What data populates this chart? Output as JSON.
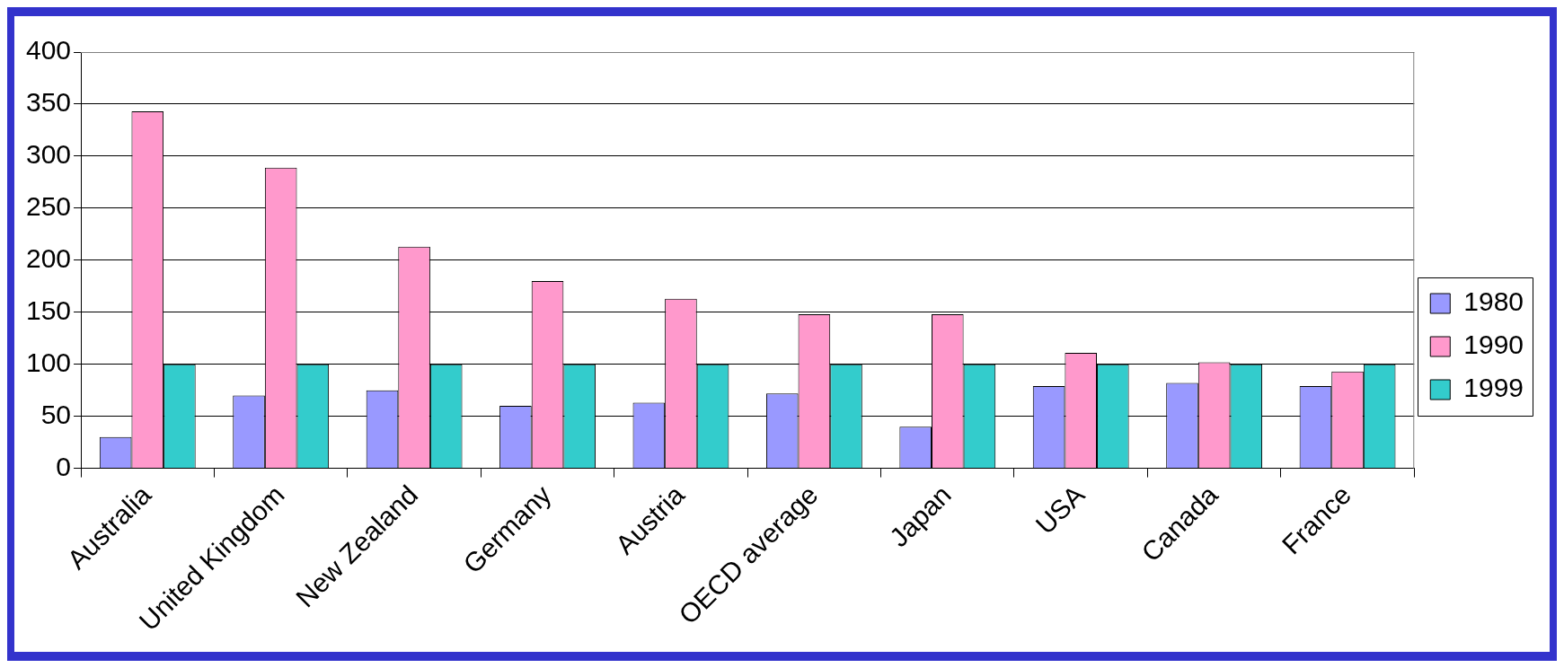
{
  "chart_data": {
    "type": "bar",
    "categories": [
      "Australia",
      "United Kingdom",
      "New Zealand",
      "Germany",
      "Austria",
      "OECD average",
      "Japan",
      "USA",
      "Canada",
      "France"
    ],
    "series": [
      {
        "name": "1980",
        "color": "#9999ff",
        "values": [
          30,
          70,
          75,
          60,
          63,
          72,
          40,
          79,
          82,
          79
        ]
      },
      {
        "name": "1990",
        "color": "#ff99cc",
        "values": [
          343,
          289,
          213,
          180,
          163,
          148,
          148,
          111,
          102,
          93
        ]
      },
      {
        "name": "1999",
        "color": "#33cccc",
        "values": [
          100,
          100,
          100,
          100,
          100,
          100,
          100,
          100,
          100,
          100
        ]
      }
    ],
    "ylim": [
      0,
      400
    ],
    "yticks": [
      0,
      50,
      100,
      150,
      200,
      250,
      300,
      350,
      400
    ],
    "grid": "y",
    "legend": "right"
  }
}
